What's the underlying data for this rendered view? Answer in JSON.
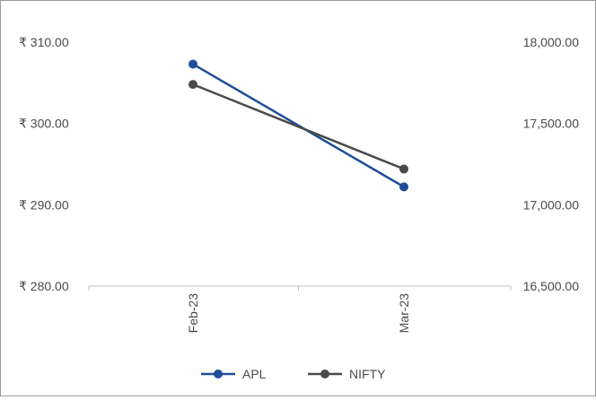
{
  "chart_data": {
    "type": "line",
    "categories": [
      "Feb-23",
      "Mar-23"
    ],
    "series": [
      {
        "name": "APL",
        "axis": "left",
        "color": "#1f4e9a",
        "values": [
          307.3,
          292.2
        ]
      },
      {
        "name": "NIFTY",
        "axis": "right",
        "color": "#4a4a4a",
        "values": [
          17740,
          17220
        ]
      }
    ],
    "y_left": {
      "ticks": [
        280,
        290,
        300,
        310
      ],
      "tick_labels": [
        "₹ 280.00",
        "₹ 290.00",
        "₹ 300.00",
        "₹ 310.00"
      ],
      "ylim": [
        280,
        310
      ]
    },
    "y_right": {
      "ticks": [
        16500,
        17000,
        17500,
        18000
      ],
      "tick_labels": [
        "16,500.00",
        "17,000.00",
        "17,500.00",
        "18,000.00"
      ],
      "ylim": [
        16500,
        18000
      ]
    },
    "grid": false,
    "legend": "bottom"
  }
}
